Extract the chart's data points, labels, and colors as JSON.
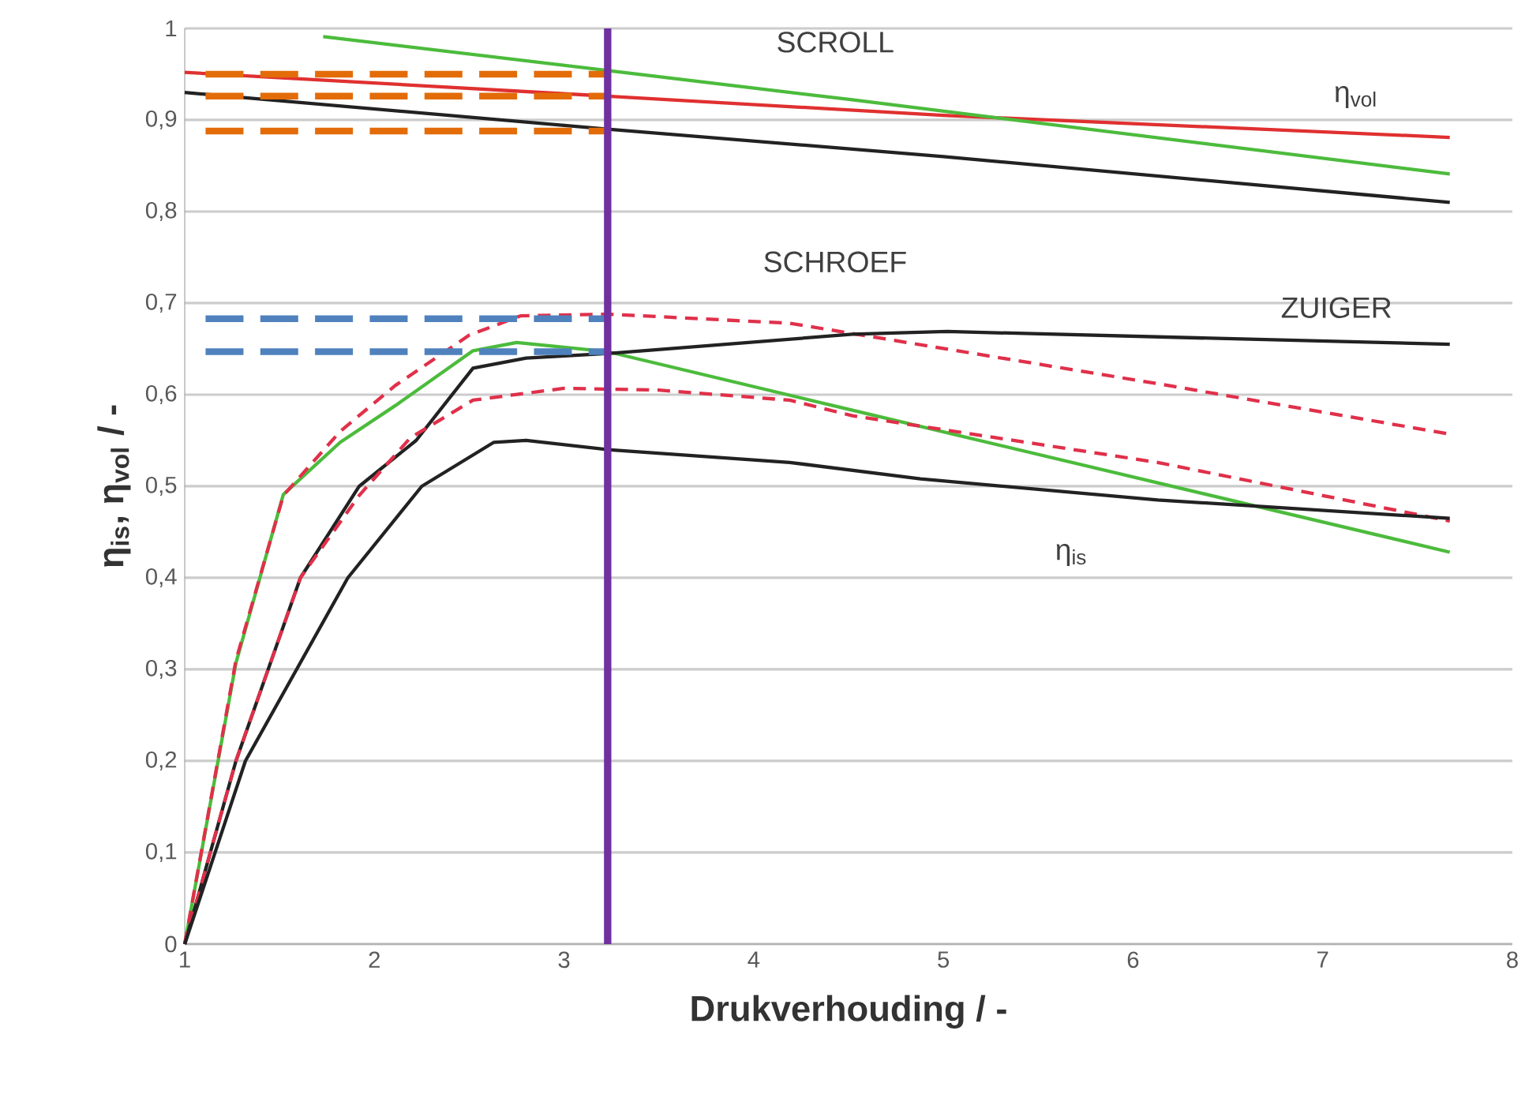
{
  "chart_data": {
    "type": "line",
    "xlabel": "Drukverhouding / -",
    "ylabel": "η$_{is}$, η$_{vol}$ / -",
    "xlim": [
      1,
      8
    ],
    "xticks": [
      1,
      2,
      3,
      4,
      5,
      6,
      7,
      8
    ],
    "ylim": [
      0,
      1
    ],
    "yticks": [
      0,
      {
        "value": 0.1,
        "label": "0,1"
      },
      {
        "value": 0.2,
        "label": "0,2"
      },
      {
        "value": 0.3,
        "label": "0,3"
      },
      {
        "value": 0.4,
        "label": "0,4"
      },
      {
        "value": 0.5,
        "label": "0,5"
      },
      {
        "value": 0.6,
        "label": "0,6"
      },
      {
        "value": 0.7,
        "label": "0,7"
      },
      {
        "value": 0.8,
        "label": "0,8"
      },
      {
        "value": 0.9,
        "label": "0,9"
      },
      1
    ],
    "grid": "y",
    "series": [
      {
        "color": "#222222",
        "x": [
          1,
          3.23,
          5,
          7.67
        ],
        "values": [
          0.93,
          0.89,
          0.86,
          0.81
        ]
      },
      {
        "color": "#e03030",
        "x": [
          1,
          3.23,
          5,
          7.67
        ],
        "values": [
          0.952,
          0.926,
          0.905,
          0.881
        ]
      },
      {
        "color": "#4cbb3c",
        "x": [
          1.73,
          3.23,
          4.52,
          7.67
        ],
        "values": [
          0.991,
          0.954,
          0.922,
          0.841
        ]
      },
      {
        "color": "#4cbb3c",
        "x": [
          1,
          1.27,
          1.52,
          1.82,
          2.11,
          2.52,
          2.75,
          3.23,
          4.52,
          7.67
        ],
        "values": [
          0,
          0.307,
          0.491,
          0.548,
          0.588,
          0.648,
          0.657,
          0.647,
          0.583,
          0.428
        ]
      },
      {
        "color": "#e0304a",
        "line_style": "dashed",
        "x": [
          1,
          1.27,
          1.52,
          1.82,
          2.11,
          2.5,
          2.77,
          3.23,
          4.19,
          6.13,
          7.67
        ],
        "values": [
          0,
          0.31,
          0.49,
          0.56,
          0.61,
          0.665,
          0.686,
          0.688,
          0.678,
          0.612,
          0.557
        ]
      },
      {
        "color": "#222222",
        "x": [
          1,
          1.27,
          1.61,
          1.92,
          2.22,
          2.52,
          2.8,
          3.23,
          4.52,
          5.02,
          7.67
        ],
        "values": [
          0,
          0.2,
          0.4,
          0.5,
          0.55,
          0.629,
          0.64,
          0.645,
          0.666,
          0.669,
          0.655
        ]
      },
      {
        "color": "#e0304a",
        "line_style": "dashed",
        "x": [
          1,
          1.27,
          1.61,
          1.92,
          2.19,
          2.52,
          3.0,
          3.5,
          4.19,
          4.52,
          6.13,
          7.67
        ],
        "values": [
          0,
          0.2,
          0.4,
          0.49,
          0.553,
          0.594,
          0.607,
          0.605,
          0.594,
          0.577,
          0.526,
          0.462
        ]
      },
      {
        "color": "#222222",
        "x": [
          1,
          1.32,
          1.86,
          2.25,
          2.63,
          2.8,
          3.23,
          4.19,
          4.88,
          6.13,
          7.67
        ],
        "values": [
          0,
          0.2,
          0.4,
          0.5,
          0.548,
          0.55,
          0.54,
          0.526,
          0.508,
          0.485,
          0.465
        ]
      },
      {
        "color": "#e36c09",
        "line_style": "dashed",
        "x": [
          1.11,
          3.24
        ],
        "values": [
          0.95,
          0.95
        ]
      },
      {
        "color": "#e36c09",
        "line_style": "dashed",
        "x": [
          1.11,
          3.24
        ],
        "values": [
          0.926,
          0.926
        ]
      },
      {
        "color": "#e36c09",
        "line_style": "dashed",
        "x": [
          1.11,
          3.24
        ],
        "values": [
          0.888,
          0.888
        ]
      },
      {
        "color": "#4f81bd",
        "line_style": "dashed",
        "x": [
          1.11,
          3.24
        ],
        "values": [
          0.683,
          0.683
        ]
      },
      {
        "color": "#4f81bd",
        "line_style": "dashed",
        "x": [
          1.11,
          3.24
        ],
        "values": [
          0.647,
          0.647
        ]
      }
    ],
    "ref_lines": [
      {
        "axis": "x",
        "value": 3.23,
        "color": "#7030a0"
      }
    ],
    "annotations": [
      "SCROLL",
      "SCHROEF",
      "ZUIGER",
      "η$_{vol}$",
      "η$_{is}$"
    ]
  }
}
